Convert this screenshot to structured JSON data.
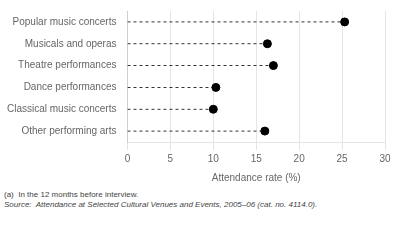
{
  "chart_data": {
    "type": "dot",
    "orientation": "horizontal",
    "categories": [
      "Popular music concerts",
      "Musicals and operas",
      "Theatre performances",
      "Dance performances",
      "Classical music concerts",
      "Other performing arts"
    ],
    "values": [
      25.3,
      16.3,
      17.0,
      10.3,
      10.0,
      16.0
    ],
    "xlabel": "Attendance rate (%)",
    "xlim": [
      0,
      30
    ],
    "xticks": [
      0,
      5,
      10,
      15,
      20,
      25,
      30
    ],
    "grid": true,
    "color": "black",
    "marker": "circle",
    "line_style": "dashed",
    "annotations": [
      "(a)  In the 12 months before interview.",
      "Source:  Attendance at Selected Cultural Venues and Events, 2005–06 (cat. no. 4114.0)."
    ]
  }
}
